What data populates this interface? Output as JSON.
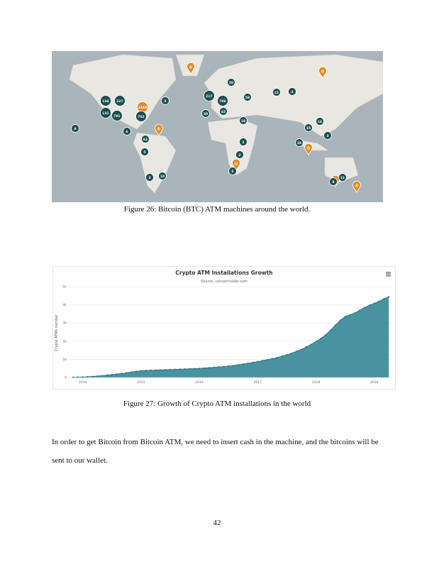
{
  "map": {
    "clusters": [
      134,
      227,
      1345,
      131,
      781,
      752,
      3,
      8,
      6,
      61,
      5,
      3,
      10,
      217,
      706,
      43,
      30,
      20,
      58,
      22,
      4,
      10,
      2,
      2,
      5,
      35,
      16,
      28,
      3,
      11,
      9
    ]
  },
  "captions": [
    "Figure 26: Bitcoin (BTC) ATM machines around the world.",
    "Figure 27: Growth of Crypto ATM installations in the world"
  ],
  "chart_data": {
    "type": "area",
    "title": "Crypto ATM Installations Growth",
    "subtitle": "Source: coinatmradar.com",
    "y_label": "Crypto ATMs number",
    "categories": [
      null,
      null,
      "2014",
      null,
      null,
      null,
      null,
      null,
      null,
      null,
      null,
      null,
      null,
      null,
      "2015",
      null,
      null,
      null,
      null,
      null,
      null,
      null,
      null,
      null,
      null,
      null,
      "2016",
      null,
      null,
      null,
      null,
      null,
      null,
      null,
      null,
      null,
      null,
      null,
      "2017",
      null,
      null,
      null,
      null,
      null,
      null,
      null,
      null,
      null,
      null,
      null,
      "2018",
      null,
      null,
      null,
      null,
      null,
      null,
      null,
      null,
      null,
      null,
      null,
      "2019",
      null,
      null,
      null
    ],
    "series": [
      {
        "name": "Crypto ATMs",
        "color": "#3f8c9b",
        "values": [
          10,
          20,
          30,
          45,
          60,
          80,
          100,
          130,
          160,
          190,
          220,
          260,
          300,
          340,
          370,
          390,
          400,
          410,
          420,
          430,
          440,
          450,
          460,
          470,
          480,
          490,
          500,
          520,
          540,
          560,
          580,
          600,
          630,
          660,
          700,
          740,
          780,
          830,
          880,
          930,
          980,
          1040,
          1100,
          1170,
          1250,
          1340,
          1440,
          1550,
          1680,
          1820,
          1980,
          2150,
          2350,
          2600,
          2880,
          3150,
          3350,
          3450,
          3550,
          3700,
          3850,
          3980,
          4080,
          4200,
          4330,
          4450
        ]
      }
    ],
    "ylim": [
      0,
      5000
    ],
    "yticks": [
      0,
      {
        "value": 1000,
        "label": "1k"
      },
      {
        "value": 2000,
        "label": "2k"
      },
      {
        "value": 3000,
        "label": "3k"
      },
      {
        "value": 4000,
        "label": "4k"
      },
      {
        "value": 5000,
        "label": "5k"
      }
    ],
    "grid": true
  },
  "body": "In order to get Bitcoin from Bitcoin ATM, we need to insert cash in the machine, and the bitcoins will be sent to our wallet.",
  "page_number": "42"
}
